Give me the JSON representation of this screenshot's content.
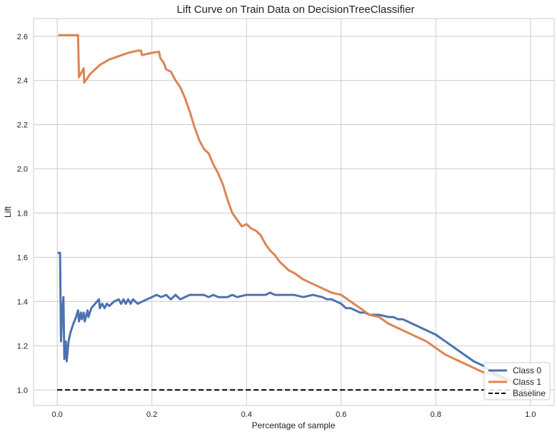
{
  "chart_data": {
    "type": "line",
    "title": "Lift Curve on Train Data on DecisionTreeClassifier",
    "xlabel": "Percentage of sample",
    "ylabel": "Lift",
    "xlim": [
      -0.05,
      1.05
    ],
    "ylim": [
      0.93,
      2.68
    ],
    "xticks": [
      "0.0",
      "0.2",
      "0.4",
      "0.6",
      "0.8",
      "1.0"
    ],
    "yticks": [
      "1.0",
      "1.2",
      "1.4",
      "1.6",
      "1.8",
      "2.0",
      "2.2",
      "2.4",
      "2.6"
    ],
    "grid": true,
    "legend_position": "lower-right",
    "series": [
      {
        "name": "Class 0",
        "color": "#4c72b0",
        "dash": "solid",
        "points": [
          [
            0.001,
            1.62
          ],
          [
            0.006,
            1.62
          ],
          [
            0.008,
            1.22
          ],
          [
            0.01,
            1.34
          ],
          [
            0.013,
            1.42
          ],
          [
            0.015,
            1.14
          ],
          [
            0.018,
            1.22
          ],
          [
            0.02,
            1.13
          ],
          [
            0.024,
            1.22
          ],
          [
            0.028,
            1.26
          ],
          [
            0.034,
            1.3
          ],
          [
            0.04,
            1.33
          ],
          [
            0.044,
            1.36
          ],
          [
            0.046,
            1.31
          ],
          [
            0.05,
            1.35
          ],
          [
            0.052,
            1.32
          ],
          [
            0.056,
            1.35
          ],
          [
            0.058,
            1.31
          ],
          [
            0.064,
            1.36
          ],
          [
            0.066,
            1.33
          ],
          [
            0.072,
            1.37
          ],
          [
            0.08,
            1.39
          ],
          [
            0.088,
            1.41
          ],
          [
            0.09,
            1.37
          ],
          [
            0.095,
            1.39
          ],
          [
            0.1,
            1.37
          ],
          [
            0.105,
            1.39
          ],
          [
            0.11,
            1.38
          ],
          [
            0.12,
            1.4
          ],
          [
            0.13,
            1.41
          ],
          [
            0.135,
            1.39
          ],
          [
            0.14,
            1.41
          ],
          [
            0.145,
            1.39
          ],
          [
            0.15,
            1.41
          ],
          [
            0.155,
            1.39
          ],
          [
            0.16,
            1.41
          ],
          [
            0.17,
            1.39
          ],
          [
            0.18,
            1.4
          ],
          [
            0.19,
            1.41
          ],
          [
            0.2,
            1.42
          ],
          [
            0.21,
            1.43
          ],
          [
            0.22,
            1.42
          ],
          [
            0.23,
            1.43
          ],
          [
            0.24,
            1.41
          ],
          [
            0.25,
            1.43
          ],
          [
            0.26,
            1.41
          ],
          [
            0.27,
            1.42
          ],
          [
            0.28,
            1.43
          ],
          [
            0.29,
            1.43
          ],
          [
            0.3,
            1.43
          ],
          [
            0.31,
            1.43
          ],
          [
            0.32,
            1.42
          ],
          [
            0.33,
            1.43
          ],
          [
            0.34,
            1.42
          ],
          [
            0.35,
            1.42
          ],
          [
            0.36,
            1.42
          ],
          [
            0.37,
            1.43
          ],
          [
            0.38,
            1.42
          ],
          [
            0.4,
            1.43
          ],
          [
            0.42,
            1.43
          ],
          [
            0.44,
            1.43
          ],
          [
            0.45,
            1.44
          ],
          [
            0.46,
            1.43
          ],
          [
            0.48,
            1.43
          ],
          [
            0.5,
            1.43
          ],
          [
            0.52,
            1.42
          ],
          [
            0.54,
            1.43
          ],
          [
            0.56,
            1.42
          ],
          [
            0.57,
            1.41
          ],
          [
            0.58,
            1.41
          ],
          [
            0.59,
            1.4
          ],
          [
            0.6,
            1.39
          ],
          [
            0.61,
            1.37
          ],
          [
            0.62,
            1.37
          ],
          [
            0.63,
            1.36
          ],
          [
            0.64,
            1.35
          ],
          [
            0.65,
            1.35
          ],
          [
            0.66,
            1.34
          ],
          [
            0.67,
            1.34
          ],
          [
            0.68,
            1.34
          ],
          [
            0.7,
            1.33
          ],
          [
            0.71,
            1.33
          ],
          [
            0.72,
            1.32
          ],
          [
            0.73,
            1.32
          ],
          [
            0.74,
            1.31
          ],
          [
            0.75,
            1.3
          ],
          [
            0.76,
            1.29
          ],
          [
            0.77,
            1.28
          ],
          [
            0.78,
            1.27
          ],
          [
            0.79,
            1.26
          ],
          [
            0.8,
            1.25
          ],
          [
            0.82,
            1.22
          ],
          [
            0.84,
            1.19
          ],
          [
            0.86,
            1.16
          ],
          [
            0.88,
            1.13
          ],
          [
            0.9,
            1.11
          ],
          [
            0.92,
            1.08
          ],
          [
            0.94,
            1.06
          ],
          [
            0.96,
            1.04
          ],
          [
            0.98,
            1.02
          ],
          [
            1.0,
            1.0
          ]
        ]
      },
      {
        "name": "Class 1",
        "color": "#dd8452",
        "dash": "solid",
        "points": [
          [
            0.002,
            2.605
          ],
          [
            0.044,
            2.605
          ],
          [
            0.046,
            2.415
          ],
          [
            0.056,
            2.455
          ],
          [
            0.057,
            2.39
          ],
          [
            0.07,
            2.43
          ],
          [
            0.09,
            2.47
          ],
          [
            0.11,
            2.495
          ],
          [
            0.13,
            2.51
          ],
          [
            0.15,
            2.525
          ],
          [
            0.17,
            2.535
          ],
          [
            0.177,
            2.535
          ],
          [
            0.179,
            2.515
          ],
          [
            0.2,
            2.525
          ],
          [
            0.215,
            2.53
          ],
          [
            0.218,
            2.5
          ],
          [
            0.225,
            2.48
          ],
          [
            0.23,
            2.45
          ],
          [
            0.24,
            2.44
          ],
          [
            0.25,
            2.4
          ],
          [
            0.26,
            2.37
          ],
          [
            0.27,
            2.32
          ],
          [
            0.28,
            2.26
          ],
          [
            0.29,
            2.19
          ],
          [
            0.3,
            2.13
          ],
          [
            0.31,
            2.09
          ],
          [
            0.32,
            2.07
          ],
          [
            0.33,
            2.02
          ],
          [
            0.34,
            1.98
          ],
          [
            0.35,
            1.93
          ],
          [
            0.36,
            1.86
          ],
          [
            0.37,
            1.8
          ],
          [
            0.38,
            1.77
          ],
          [
            0.39,
            1.74
          ],
          [
            0.4,
            1.75
          ],
          [
            0.41,
            1.73
          ],
          [
            0.42,
            1.72
          ],
          [
            0.43,
            1.7
          ],
          [
            0.44,
            1.66
          ],
          [
            0.45,
            1.63
          ],
          [
            0.46,
            1.61
          ],
          [
            0.47,
            1.58
          ],
          [
            0.48,
            1.56
          ],
          [
            0.49,
            1.54
          ],
          [
            0.5,
            1.53
          ],
          [
            0.52,
            1.5
          ],
          [
            0.54,
            1.48
          ],
          [
            0.56,
            1.46
          ],
          [
            0.58,
            1.44
          ],
          [
            0.6,
            1.43
          ],
          [
            0.62,
            1.4
          ],
          [
            0.64,
            1.37
          ],
          [
            0.66,
            1.34
          ],
          [
            0.68,
            1.33
          ],
          [
            0.7,
            1.3
          ],
          [
            0.72,
            1.28
          ],
          [
            0.74,
            1.26
          ],
          [
            0.76,
            1.24
          ],
          [
            0.78,
            1.22
          ],
          [
            0.8,
            1.19
          ],
          [
            0.82,
            1.16
          ],
          [
            0.84,
            1.14
          ],
          [
            0.86,
            1.12
          ],
          [
            0.88,
            1.1
          ],
          [
            0.9,
            1.08
          ],
          [
            0.92,
            1.07
          ],
          [
            0.94,
            1.05
          ],
          [
            0.96,
            1.04
          ],
          [
            0.98,
            1.02
          ],
          [
            1.0,
            1.0
          ]
        ]
      },
      {
        "name": "Baseline",
        "color": "#000000",
        "dash": "dashed",
        "points": [
          [
            0.0,
            1.0
          ],
          [
            1.0,
            1.0
          ]
        ]
      }
    ]
  }
}
